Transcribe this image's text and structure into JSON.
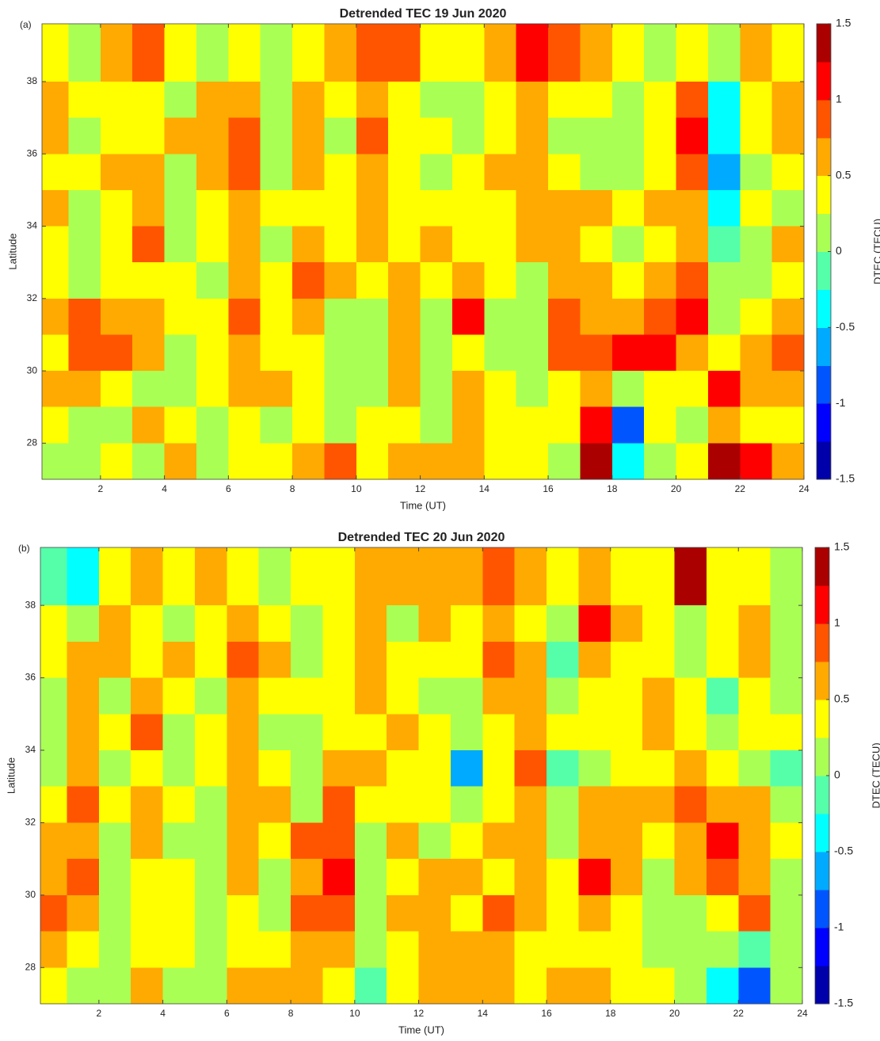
{
  "chart_data": [
    {
      "type": "contour",
      "panel_label": "(a)",
      "title": "Detrended TEC 19 Jun 2020",
      "xlabel": "Time (UT)",
      "ylabel": "Latitude",
      "colorbar_label": "DTEC (TECU)",
      "xlim": [
        0.17,
        24
      ],
      "ylim": [
        27,
        39.6
      ],
      "xticks": [
        2,
        4,
        6,
        8,
        10,
        12,
        14,
        16,
        18,
        20,
        22,
        24
      ],
      "yticks": [
        28,
        30,
        32,
        34,
        36,
        38
      ],
      "clim": [
        -1.5,
        1.5
      ],
      "cticks": [
        -1.5,
        -1,
        -0.5,
        0,
        0.5,
        1,
        1.5
      ],
      "colormap": "jet",
      "x": [
        0.5,
        1.5,
        2.5,
        3.5,
        4.5,
        5.5,
        6.5,
        7.5,
        8.5,
        9.5,
        10.5,
        11.5,
        12.5,
        13.5,
        14.5,
        15.5,
        16.5,
        17.5,
        18.5,
        19.5,
        20.5,
        21.5,
        22.5,
        23.5
      ],
      "y": [
        38.5,
        37.5,
        36.5,
        35.5,
        34.5,
        33.5,
        32.5,
        31.5,
        30.5,
        29.5,
        28.5,
        27.5
      ],
      "z": [
        [
          0.3,
          0.2,
          0.6,
          0.8,
          0.3,
          0.2,
          0.4,
          0.1,
          0.3,
          0.5,
          0.8,
          0.8,
          0.4,
          0.3,
          0.5,
          1.0,
          0.9,
          0.6,
          0.3,
          0.2,
          0.4,
          0.1,
          0.5,
          0.3
        ],
        [
          0.6,
          0.3,
          0.4,
          0.3,
          0.2,
          0.7,
          0.5,
          0.2,
          0.7,
          0.3,
          0.5,
          0.4,
          0.2,
          0.1,
          0.4,
          0.6,
          0.4,
          0.3,
          0.1,
          0.3,
          0.9,
          -0.3,
          0.4,
          0.6
        ],
        [
          0.5,
          0.2,
          0.3,
          0.3,
          0.7,
          0.5,
          0.8,
          0.1,
          0.7,
          0.2,
          0.8,
          0.3,
          0.3,
          0.2,
          0.3,
          0.6,
          0.2,
          0.1,
          0.0,
          0.3,
          1.2,
          -0.4,
          0.3,
          0.5
        ],
        [
          0.4,
          0.3,
          0.5,
          0.7,
          0.1,
          0.5,
          0.8,
          0.1,
          0.5,
          0.3,
          0.7,
          0.3,
          0.1,
          0.4,
          0.5,
          0.7,
          0.3,
          0.1,
          0.1,
          0.4,
          0.9,
          -0.6,
          0.2,
          0.3
        ],
        [
          0.6,
          0.1,
          0.3,
          0.7,
          0.1,
          0.3,
          0.7,
          0.3,
          0.4,
          0.3,
          0.6,
          0.4,
          0.3,
          0.4,
          0.3,
          0.5,
          0.5,
          0.7,
          0.3,
          0.5,
          0.7,
          -0.3,
          0.3,
          0.2
        ],
        [
          0.4,
          0.0,
          0.3,
          0.8,
          0.2,
          0.3,
          0.5,
          0.1,
          0.7,
          0.4,
          0.5,
          0.3,
          0.5,
          0.3,
          0.4,
          0.6,
          0.6,
          0.4,
          0.2,
          0.4,
          0.5,
          -0.1,
          0.2,
          0.5
        ],
        [
          0.3,
          0.2,
          0.3,
          0.4,
          0.3,
          0.1,
          0.5,
          0.3,
          0.8,
          0.5,
          0.3,
          0.6,
          0.3,
          0.5,
          0.3,
          0.2,
          0.6,
          0.5,
          0.3,
          0.5,
          0.9,
          0.0,
          0.2,
          0.4
        ],
        [
          0.5,
          0.8,
          0.7,
          0.6,
          0.4,
          0.3,
          0.8,
          0.4,
          0.6,
          0.1,
          0.2,
          0.7,
          0.2,
          1.0,
          0.2,
          0.1,
          0.9,
          0.7,
          0.6,
          0.8,
          1.0,
          0.2,
          0.3,
          0.6
        ],
        [
          0.4,
          0.8,
          0.8,
          0.5,
          0.2,
          0.3,
          0.6,
          0.3,
          0.4,
          0.1,
          0.1,
          0.7,
          0.1,
          0.3,
          0.1,
          0.2,
          0.8,
          0.9,
          1.1,
          1.0,
          0.6,
          0.3,
          0.5,
          0.8
        ],
        [
          0.7,
          0.5,
          0.4,
          0.2,
          0.1,
          0.3,
          0.5,
          0.7,
          0.3,
          0.1,
          0.1,
          0.6,
          0.1,
          0.5,
          0.3,
          0.2,
          0.4,
          0.6,
          0.1,
          0.3,
          0.4,
          1.0,
          0.5,
          0.7
        ],
        [
          0.3,
          0.1,
          0.2,
          0.6,
          0.3,
          0.1,
          0.3,
          0.2,
          0.4,
          0.1,
          0.4,
          0.3,
          0.2,
          0.6,
          0.4,
          0.3,
          0.3,
          1.0,
          -0.8,
          0.4,
          0.2,
          0.6,
          0.4,
          0.3
        ],
        [
          0.2,
          0.1,
          0.3,
          0.2,
          0.7,
          0.2,
          0.4,
          0.3,
          0.6,
          0.9,
          0.4,
          0.6,
          0.7,
          0.7,
          0.4,
          0.3,
          0.2,
          1.4,
          -0.3,
          0.1,
          0.4,
          1.4,
          1.1,
          0.5
        ]
      ]
    },
    {
      "type": "contour",
      "panel_label": "(b)",
      "title": "Detrended TEC 20 Jun 2020",
      "xlabel": "Time (UT)",
      "ylabel": "Latitude",
      "colorbar_label": "DTEC (TECU)",
      "xlim": [
        0.17,
        24
      ],
      "ylim": [
        27,
        39.6
      ],
      "xticks": [
        2,
        4,
        6,
        8,
        10,
        12,
        14,
        16,
        18,
        20,
        22,
        24
      ],
      "yticks": [
        28,
        30,
        32,
        34,
        36,
        38
      ],
      "clim": [
        -1.5,
        1.5
      ],
      "cticks": [
        -1.5,
        -1,
        -0.5,
        0,
        0.5,
        1,
        1.5
      ],
      "colormap": "jet",
      "x": [
        0.5,
        1.5,
        2.5,
        3.5,
        4.5,
        5.5,
        6.5,
        7.5,
        8.5,
        9.5,
        10.5,
        11.5,
        12.5,
        13.5,
        14.5,
        15.5,
        16.5,
        17.5,
        18.5,
        19.5,
        20.5,
        21.5,
        22.5,
        23.5
      ],
      "y": [
        38.5,
        37.5,
        36.5,
        35.5,
        34.5,
        33.5,
        32.5,
        31.5,
        30.5,
        29.5,
        28.5,
        27.5
      ],
      "z": [
        [
          -0.2,
          -0.3,
          0.3,
          0.5,
          0.4,
          0.6,
          0.3,
          0.2,
          0.4,
          0.3,
          0.7,
          0.6,
          0.6,
          0.7,
          0.8,
          0.6,
          0.3,
          0.6,
          0.3,
          0.4,
          1.3,
          0.4,
          0.3,
          0.1
        ],
        [
          0.3,
          0.1,
          0.7,
          0.3,
          0.2,
          0.3,
          0.7,
          0.4,
          0.2,
          0.4,
          0.5,
          0.2,
          0.5,
          0.4,
          0.6,
          0.4,
          0.0,
          1.0,
          0.5,
          0.3,
          0.1,
          0.4,
          0.6,
          0.2
        ],
        [
          0.4,
          0.6,
          0.5,
          0.3,
          0.6,
          0.4,
          0.8,
          0.5,
          0.2,
          0.3,
          0.7,
          0.4,
          0.3,
          0.4,
          0.9,
          0.5,
          -0.1,
          0.5,
          0.3,
          0.4,
          0.2,
          0.3,
          0.6,
          0.1
        ],
        [
          0.2,
          0.5,
          0.2,
          0.7,
          0.3,
          0.1,
          0.7,
          0.4,
          0.3,
          0.4,
          0.5,
          0.3,
          0.2,
          0.2,
          0.6,
          0.7,
          0.2,
          0.3,
          0.3,
          0.7,
          0.3,
          -0.2,
          0.3,
          0.2
        ],
        [
          0.1,
          0.6,
          0.3,
          0.8,
          0.2,
          0.3,
          0.5,
          0.1,
          0.2,
          0.3,
          0.4,
          0.5,
          0.4,
          0.1,
          0.3,
          0.6,
          0.3,
          0.4,
          0.4,
          0.7,
          0.4,
          0.0,
          0.4,
          0.3
        ],
        [
          0.2,
          0.7,
          0.1,
          0.4,
          0.2,
          0.3,
          0.7,
          0.4,
          0.2,
          0.7,
          0.5,
          0.3,
          0.4,
          -0.6,
          0.3,
          0.8,
          -0.2,
          0.2,
          0.4,
          0.3,
          0.5,
          0.3,
          0.2,
          -0.1
        ],
        [
          0.4,
          0.8,
          0.3,
          0.5,
          0.3,
          0.2,
          0.6,
          0.5,
          0.1,
          0.8,
          0.3,
          0.4,
          0.3,
          0.2,
          0.4,
          0.7,
          0.1,
          0.5,
          0.6,
          0.5,
          0.8,
          0.7,
          0.5,
          0.2
        ],
        [
          0.5,
          0.7,
          0.2,
          0.5,
          0.2,
          0.1,
          0.6,
          0.3,
          0.8,
          0.9,
          0.2,
          0.5,
          0.2,
          0.3,
          0.5,
          0.6,
          0.2,
          0.7,
          0.5,
          0.3,
          0.7,
          1.0,
          0.6,
          0.3
        ],
        [
          0.6,
          0.8,
          0.1,
          0.4,
          0.3,
          0.1,
          0.5,
          0.2,
          0.5,
          1.1,
          0.1,
          0.4,
          0.5,
          0.6,
          0.4,
          0.7,
          0.3,
          1.0,
          0.5,
          0.2,
          0.6,
          0.8,
          0.7,
          0.2
        ],
        [
          0.8,
          0.5,
          0.1,
          0.3,
          0.4,
          0.2,
          0.4,
          0.1,
          0.8,
          0.8,
          0.0,
          0.6,
          0.6,
          0.4,
          0.9,
          0.6,
          0.4,
          0.5,
          0.3,
          0.1,
          0.2,
          0.4,
          0.8,
          0.1
        ],
        [
          0.7,
          0.3,
          0.1,
          0.3,
          0.3,
          0.2,
          0.4,
          0.3,
          0.5,
          0.5,
          0.1,
          0.3,
          0.6,
          0.7,
          0.6,
          0.4,
          0.3,
          0.3,
          0.4,
          0.2,
          0.1,
          0.1,
          -0.2,
          0.2
        ],
        [
          0.3,
          0.2,
          0.1,
          0.7,
          0.2,
          0.1,
          0.5,
          0.6,
          0.7,
          0.4,
          -0.1,
          0.3,
          0.6,
          0.5,
          0.5,
          0.4,
          0.7,
          0.5,
          0.3,
          0.3,
          0.2,
          -0.3,
          -0.9,
          0.1
        ]
      ]
    }
  ]
}
